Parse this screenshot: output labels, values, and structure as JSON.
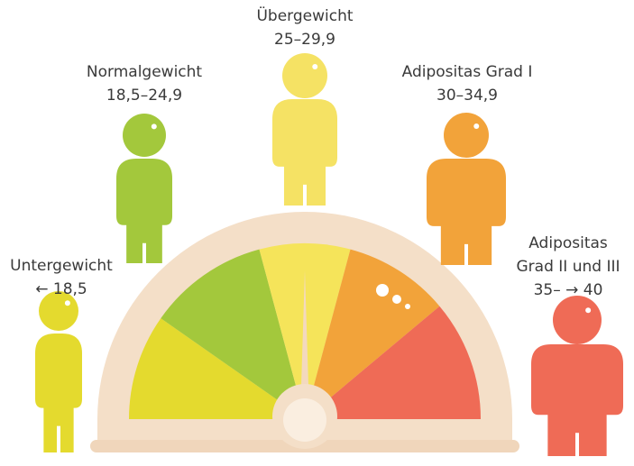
{
  "categories": [
    {
      "name": "Untergewicht",
      "lines": [
        "← 18,5"
      ]
    },
    {
      "name": "Normalgewicht",
      "lines": [
        "18,5–24,9"
      ]
    },
    {
      "name": "Übergewicht",
      "lines": [
        "25–29,9"
      ]
    },
    {
      "name": "Adipositas Grad I",
      "lines": [
        "30–34,9"
      ]
    },
    {
      "name": "Adipositas",
      "lines": [
        "Grad II und III",
        "35– → 40"
      ]
    }
  ]
}
